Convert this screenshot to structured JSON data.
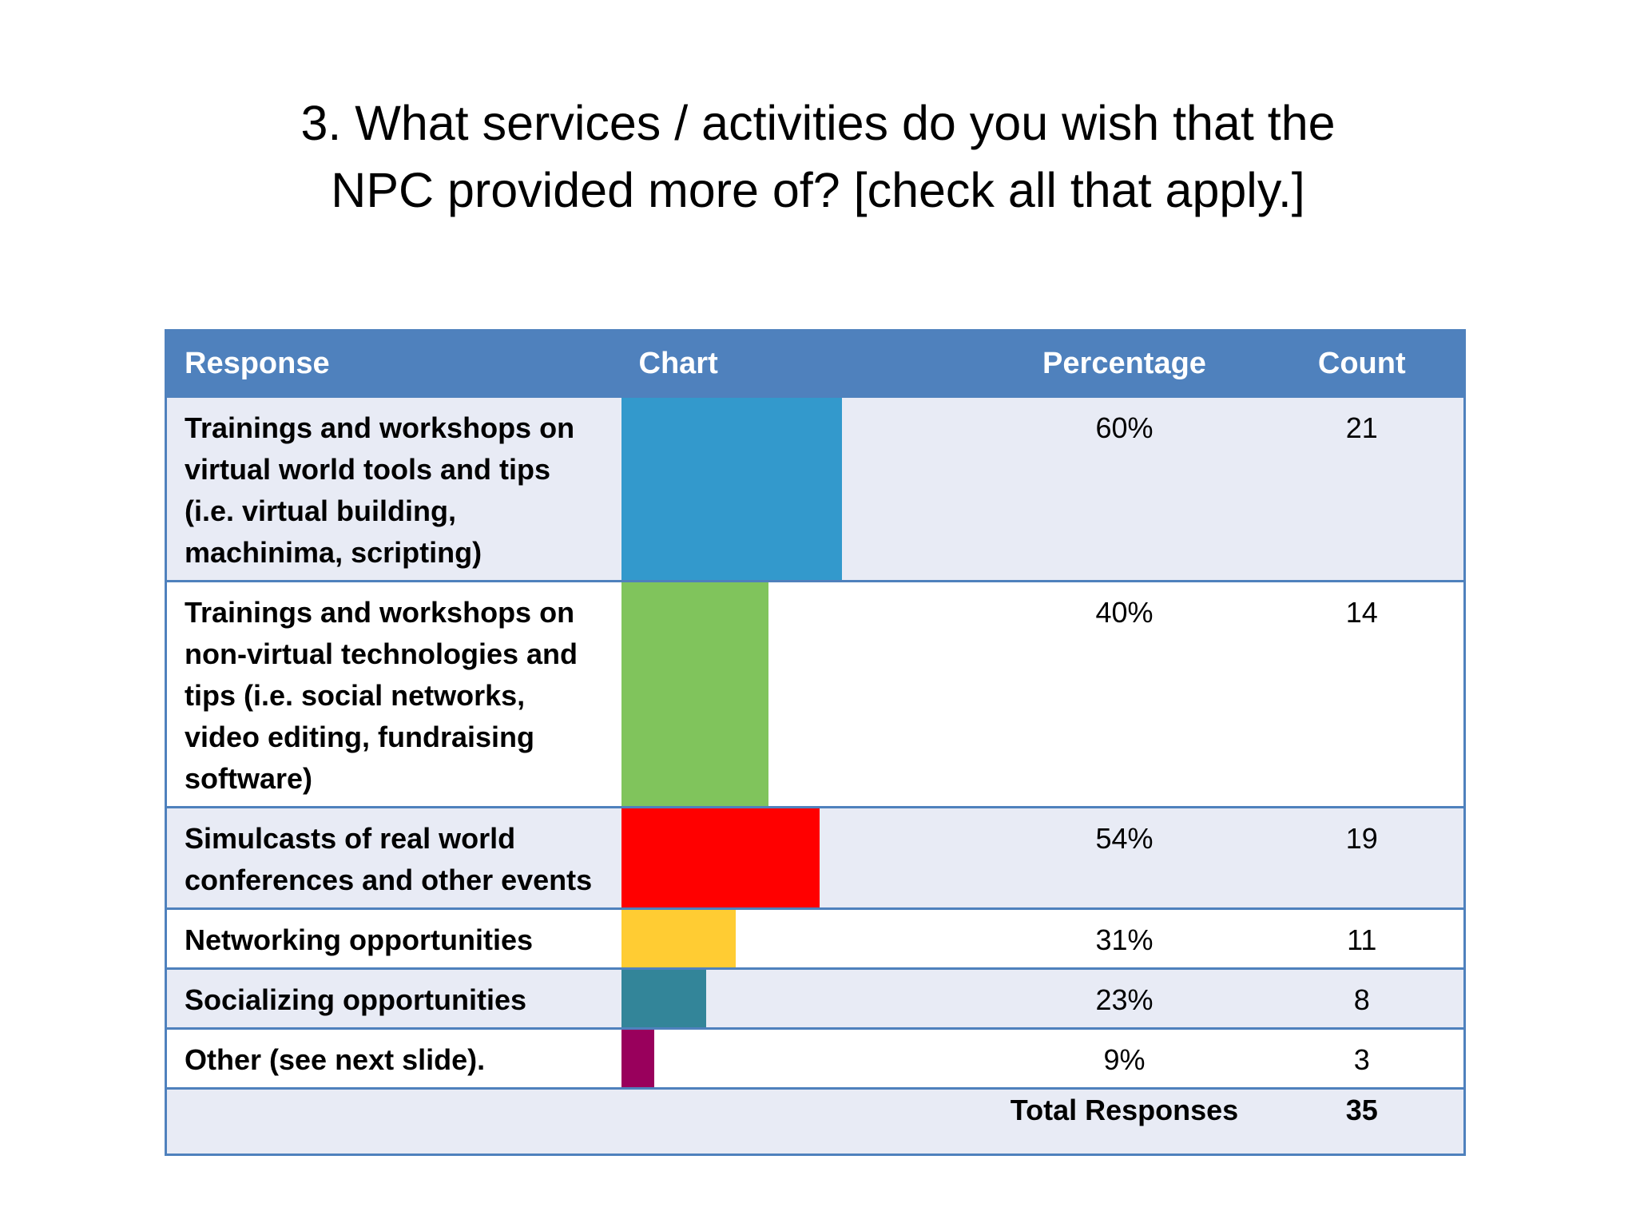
{
  "title_lines": [
    "3. What services / activities do you wish that the",
    "NPC provided more of? [check all that apply.]"
  ],
  "table": {
    "headers": {
      "response": "Response",
      "chart": "Chart",
      "percentage": "Percentage",
      "count": "Count"
    },
    "total_label": "Total Responses",
    "total_value": "35"
  },
  "chart_data": {
    "type": "bar",
    "categories": [
      "Trainings and workshops on virtual world tools and tips (i.e. virtual building, machinima, scripting)",
      "Trainings and workshops on non-virtual technologies and tips (i.e. social networks, video editing, fundraising software)",
      "Simulcasts of real world conferences and other events",
      "Networking opportunities",
      "Socializing opportunities",
      "Other (see next slide)."
    ],
    "values": [
      60,
      40,
      54,
      31,
      23,
      9
    ],
    "percent_labels": [
      "60%",
      "40%",
      "54%",
      "31%",
      "23%",
      "9%"
    ],
    "counts": [
      "21",
      "14",
      "19",
      "11",
      "8",
      "3"
    ],
    "colors": [
      "#3399cc",
      "#80c45c",
      "#ff0000",
      "#ffcc33",
      "#338599",
      "#99005c"
    ],
    "xlim": [
      0,
      100
    ],
    "orientation": "horizontal"
  }
}
